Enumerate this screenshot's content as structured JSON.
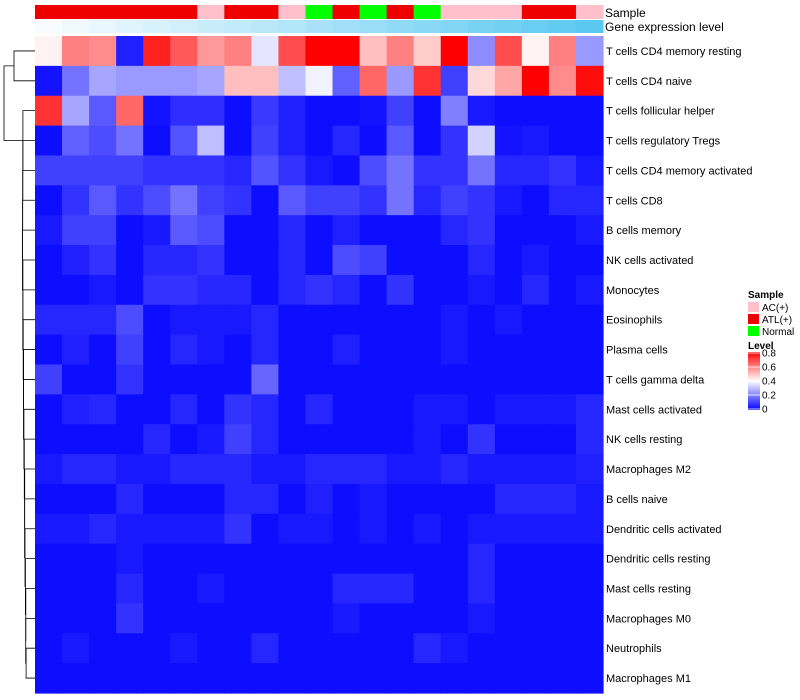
{
  "chart_data": {
    "type": "heatmap",
    "title": "",
    "annotation_labels": {
      "sample": "Sample",
      "gene_expression": "Gene expression level"
    },
    "sample_groups": [
      "ATL(+)",
      "ATL(+)",
      "ATL(+)",
      "ATL(+)",
      "ATL(+)",
      "ATL(+)",
      "AC(+)",
      "ATL(+)",
      "ATL(+)",
      "AC(+)",
      "Normal",
      "ATL(+)",
      "Normal",
      "ATL(+)",
      "Normal",
      "AC(+)",
      "AC(+)",
      "AC(+)",
      "ATL(+)",
      "ATL(+)",
      "AC(+)"
    ],
    "rows": [
      "T cells CD4 memory resting",
      "T cells CD4 naive",
      "T cells follicular helper",
      "T cells regulatory  Tregs",
      "T cells CD4 memory activated",
      "T cells CD8",
      "B cells memory",
      "NK cells activated",
      "Monocytes",
      "Eosinophils",
      "Plasma cells",
      "T cells gamma delta",
      "Mast cells activated",
      "NK cells resting",
      "Macrophages M2",
      "B cells naive",
      "Dendritic cells activated",
      "Dendritic cells resting",
      "Mast cells resting",
      "Macrophages M0",
      "Neutrophils",
      "Macrophages M1"
    ],
    "values": [
      [
        0.42,
        0.6,
        0.58,
        0.05,
        0.75,
        0.66,
        0.56,
        0.6,
        0.36,
        0.68,
        0.8,
        0.8,
        0.5,
        0.6,
        0.48,
        0.8,
        0.22,
        0.68,
        0.42,
        0.6,
        0.24
      ],
      [
        0.03,
        0.18,
        0.26,
        0.24,
        0.24,
        0.24,
        0.26,
        0.5,
        0.5,
        0.3,
        0.38,
        0.15,
        0.64,
        0.24,
        0.72,
        0.1,
        0.46,
        0.54,
        0.8,
        0.58,
        0.78
      ],
      [
        0.72,
        0.26,
        0.14,
        0.64,
        0.03,
        0.07,
        0.07,
        0.02,
        0.09,
        0.05,
        0.02,
        0.02,
        0.03,
        0.1,
        0.02,
        0.2,
        0.04,
        0.02,
        0.02,
        0.02,
        0.02
      ],
      [
        0.02,
        0.15,
        0.12,
        0.18,
        0.02,
        0.13,
        0.3,
        0.02,
        0.1,
        0.05,
        0.02,
        0.06,
        0.02,
        0.14,
        0.02,
        0.08,
        0.33,
        0.03,
        0.04,
        0.02,
        0.02
      ],
      [
        0.1,
        0.1,
        0.1,
        0.1,
        0.08,
        0.08,
        0.08,
        0.06,
        0.13,
        0.08,
        0.04,
        0.02,
        0.12,
        0.18,
        0.08,
        0.08,
        0.18,
        0.06,
        0.06,
        0.08,
        0.04
      ],
      [
        0.02,
        0.08,
        0.14,
        0.08,
        0.12,
        0.18,
        0.1,
        0.08,
        0.02,
        0.14,
        0.1,
        0.1,
        0.08,
        0.18,
        0.06,
        0.1,
        0.08,
        0.04,
        0.02,
        0.06,
        0.06
      ],
      [
        0.04,
        0.1,
        0.1,
        0.02,
        0.04,
        0.14,
        0.12,
        0.02,
        0.02,
        0.06,
        0.02,
        0.05,
        0.02,
        0.02,
        0.02,
        0.06,
        0.08,
        0.02,
        0.02,
        0.02,
        0.04
      ],
      [
        0.02,
        0.05,
        0.08,
        0.02,
        0.06,
        0.06,
        0.08,
        0.02,
        0.02,
        0.06,
        0.02,
        0.12,
        0.1,
        0.02,
        0.02,
        0.02,
        0.06,
        0.02,
        0.04,
        0.02,
        0.02
      ],
      [
        0.02,
        0.02,
        0.04,
        0.02,
        0.08,
        0.08,
        0.06,
        0.06,
        0.02,
        0.06,
        0.08,
        0.06,
        0.02,
        0.08,
        0.02,
        0.02,
        0.04,
        0.02,
        0.06,
        0.02,
        0.04
      ],
      [
        0.06,
        0.06,
        0.06,
        0.12,
        0.02,
        0.04,
        0.04,
        0.04,
        0.06,
        0.02,
        0.02,
        0.02,
        0.02,
        0.02,
        0.02,
        0.04,
        0.02,
        0.04,
        0.02,
        0.02,
        0.02
      ],
      [
        0.02,
        0.05,
        0.02,
        0.1,
        0.02,
        0.06,
        0.04,
        0.02,
        0.06,
        0.02,
        0.02,
        0.05,
        0.02,
        0.02,
        0.02,
        0.04,
        0.02,
        0.02,
        0.02,
        0.02,
        0.02
      ],
      [
        0.1,
        0.02,
        0.02,
        0.08,
        0.02,
        0.02,
        0.02,
        0.02,
        0.16,
        0.02,
        0.02,
        0.02,
        0.02,
        0.02,
        0.02,
        0.02,
        0.02,
        0.02,
        0.02,
        0.02,
        0.02
      ],
      [
        0.02,
        0.05,
        0.06,
        0.02,
        0.02,
        0.06,
        0.02,
        0.08,
        0.06,
        0.02,
        0.06,
        0.02,
        0.02,
        0.02,
        0.04,
        0.04,
        0.02,
        0.04,
        0.04,
        0.04,
        0.06
      ],
      [
        0.02,
        0.02,
        0.02,
        0.02,
        0.06,
        0.02,
        0.04,
        0.1,
        0.06,
        0.02,
        0.02,
        0.02,
        0.02,
        0.02,
        0.04,
        0.02,
        0.08,
        0.02,
        0.02,
        0.02,
        0.06
      ],
      [
        0.04,
        0.06,
        0.06,
        0.04,
        0.04,
        0.06,
        0.06,
        0.06,
        0.04,
        0.04,
        0.06,
        0.06,
        0.06,
        0.04,
        0.04,
        0.06,
        0.04,
        0.04,
        0.04,
        0.04,
        0.05
      ],
      [
        0.02,
        0.02,
        0.02,
        0.06,
        0.02,
        0.02,
        0.02,
        0.06,
        0.06,
        0.02,
        0.05,
        0.02,
        0.04,
        0.02,
        0.02,
        0.02,
        0.02,
        0.06,
        0.06,
        0.06,
        0.04
      ],
      [
        0.04,
        0.04,
        0.06,
        0.04,
        0.04,
        0.04,
        0.04,
        0.08,
        0.02,
        0.04,
        0.04,
        0.02,
        0.04,
        0.02,
        0.04,
        0.02,
        0.04,
        0.04,
        0.04,
        0.04,
        0.04
      ],
      [
        0.02,
        0.02,
        0.02,
        0.04,
        0.02,
        0.02,
        0.02,
        0.02,
        0.02,
        0.02,
        0.02,
        0.02,
        0.02,
        0.02,
        0.02,
        0.02,
        0.06,
        0.02,
        0.02,
        0.02,
        0.02
      ],
      [
        0.02,
        0.02,
        0.02,
        0.06,
        0.02,
        0.02,
        0.04,
        0.02,
        0.02,
        0.02,
        0.02,
        0.06,
        0.06,
        0.06,
        0.02,
        0.02,
        0.06,
        0.02,
        0.02,
        0.02,
        0.02
      ],
      [
        0.02,
        0.02,
        0.02,
        0.08,
        0.02,
        0.02,
        0.02,
        0.02,
        0.02,
        0.02,
        0.02,
        0.04,
        0.02,
        0.02,
        0.02,
        0.02,
        0.04,
        0.02,
        0.02,
        0.02,
        0.02
      ],
      [
        0.02,
        0.04,
        0.02,
        0.02,
        0.02,
        0.04,
        0.02,
        0.02,
        0.06,
        0.02,
        0.02,
        0.02,
        0.02,
        0.02,
        0.06,
        0.04,
        0.02,
        0.02,
        0.02,
        0.02,
        0.02
      ],
      [
        0.02,
        0.02,
        0.02,
        0.02,
        0.02,
        0.02,
        0.02,
        0.02,
        0.02,
        0.02,
        0.02,
        0.02,
        0.02,
        0.02,
        0.02,
        0.02,
        0.02,
        0.02,
        0.02,
        0.02,
        0.02
      ]
    ],
    "color_scale": {
      "stops": [
        0,
        0.4,
        0.8
      ],
      "colors": [
        "#0000ff",
        "#ffffff",
        "#ff0000"
      ]
    },
    "legend": {
      "sample_title": "Sample",
      "sample_entries": [
        {
          "label": "AC(+)",
          "color": "#ffc0cb"
        },
        {
          "label": "ATL(+)",
          "color": "#ee0000"
        },
        {
          "label": "Normal",
          "color": "#00ff00"
        }
      ],
      "level_title": "Level",
      "level_ticks": [
        "0.8",
        "0.6",
        "0.4",
        "0.2",
        "0"
      ],
      "level_tick_values": [
        0.8,
        0.6,
        0.4,
        0.2,
        0
      ]
    },
    "gene_expression_color": "#5ac8f0",
    "row_dendrogram": true
  }
}
